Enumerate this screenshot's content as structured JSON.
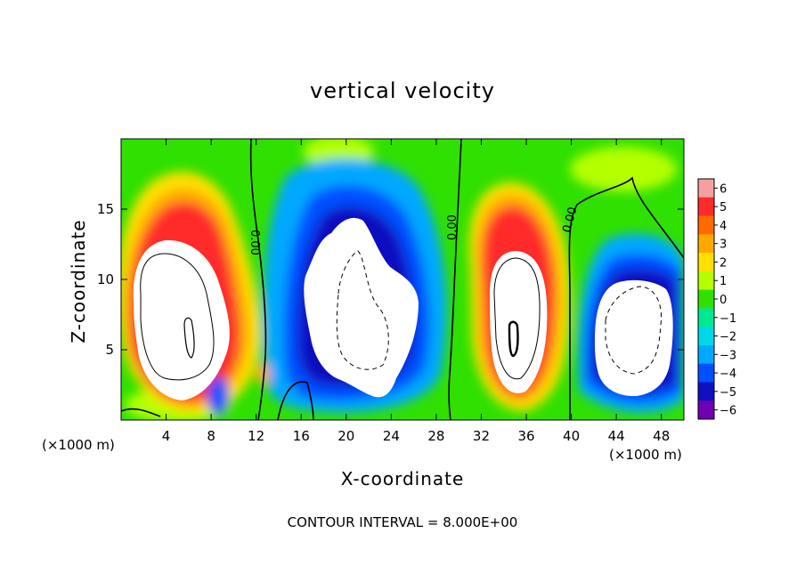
{
  "chart_data": {
    "type": "heatmap",
    "title": "vertical velocity",
    "xlabel": "X-coordinate",
    "ylabel": "Z-coordinate",
    "x_unit_label": "(×1000 m)",
    "x_unit_label_right": "(×1000 m)",
    "xlim": [
      0,
      50
    ],
    "ylim": [
      0,
      20
    ],
    "x_ticks": [
      4,
      8,
      12,
      16,
      20,
      24,
      28,
      32,
      36,
      40,
      44,
      48
    ],
    "y_ticks": [
      5,
      10,
      15
    ],
    "colorbar": {
      "ticks": [
        6,
        5,
        4,
        3,
        2,
        1,
        0,
        -1,
        -2,
        -3,
        -4,
        -5,
        -6
      ],
      "tick_labels": [
        "6",
        "5",
        "4",
        "3",
        "2",
        "1",
        "0",
        "−1",
        "−2",
        "−3",
        "−4",
        "−5",
        "−6"
      ],
      "colors": [
        "#f4a0a0",
        "#ff2a2a",
        "#ff6a00",
        "#ffa800",
        "#ffe000",
        "#b4ff00",
        "#30e000",
        "#00e890",
        "#00d8e8",
        "#00a8ff",
        "#0050ff",
        "#1010c0",
        "#7000b0"
      ]
    },
    "features": [
      {
        "kind": "updraft",
        "x_center": 6,
        "z_center": 9
      },
      {
        "kind": "downdraft",
        "x_center": 21,
        "z_center": 9
      },
      {
        "kind": "updraft",
        "x_center": 34,
        "z_center": 8
      },
      {
        "kind": "downdraft",
        "x_center": 45,
        "z_center": 7
      }
    ],
    "contour_labels": [
      "0.00",
      "0.00",
      "0.00"
    ],
    "contour_interval_text": "CONTOUR INTERVAL =  8.000E+00"
  }
}
